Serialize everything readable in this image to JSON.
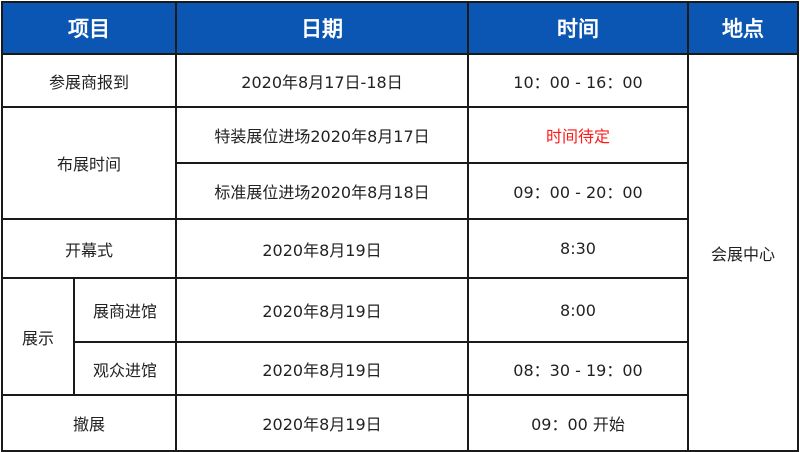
{
  "header": {
    "item": "项目",
    "date": "日期",
    "time": "时间",
    "location": "地点"
  },
  "location": "会展中心",
  "rows": {
    "checkin": {
      "item": "参展商报到",
      "date": "2020年8月17日-18日",
      "time": "10：00 - 16：00"
    },
    "setup": {
      "item": "布展时间",
      "special": {
        "date": "特装展位进场2020年8月17日",
        "time": "时间待定",
        "time_color": "#ff1a1a"
      },
      "standard": {
        "date": "标准展位进场2020年8月18日",
        "time": "09：00 - 20：00"
      }
    },
    "opening": {
      "item": "开幕式",
      "date": "2020年8月19日",
      "time": "8:30"
    },
    "exhibit": {
      "item": "展示",
      "exhibitor": {
        "item": "展商进馆",
        "date": "2020年8月19日",
        "time": "8:00"
      },
      "visitor": {
        "item": "观众进馆",
        "date": "2020年8月19日",
        "time": "08：30 - 19：00"
      }
    },
    "teardown": {
      "item": "撤展",
      "date": "2020年8月19日",
      "time": "09：00 开始"
    }
  },
  "colors": {
    "header_bg": "#0b56b3",
    "header_text": "#ffffff"
  }
}
